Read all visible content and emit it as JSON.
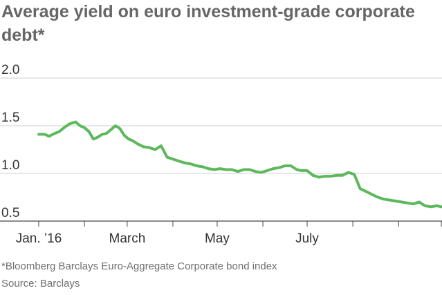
{
  "chart_data": {
    "type": "line",
    "title": "Average yield on euro investment-grade corporate debt*",
    "xlabel": "",
    "ylabel": "",
    "ylim": [
      0.5,
      2.0
    ],
    "yticks": [
      "2.0",
      "1.5",
      "1.0",
      "0.5"
    ],
    "xticks": [
      "Jan. ’16",
      "March",
      "May",
      "July"
    ],
    "xlim": [
      "2016-01-01",
      "2016-09-30"
    ],
    "grid": "horizontal",
    "line_color": "#5cb85c",
    "x": [
      "2016-01-01",
      "2016-01-05",
      "2016-01-08",
      "2016-01-12",
      "2016-01-15",
      "2016-01-19",
      "2016-01-22",
      "2016-01-26",
      "2016-01-29",
      "2016-02-01",
      "2016-02-04",
      "2016-02-07",
      "2016-02-10",
      "2016-02-13",
      "2016-02-16",
      "2016-02-19",
      "2016-02-22",
      "2016-02-25",
      "2016-02-28",
      "2016-03-02",
      "2016-03-05",
      "2016-03-08",
      "2016-03-12",
      "2016-03-16",
      "2016-03-20",
      "2016-03-24",
      "2016-03-28",
      "2016-04-01",
      "2016-04-05",
      "2016-04-09",
      "2016-04-13",
      "2016-04-17",
      "2016-04-21",
      "2016-04-25",
      "2016-04-29",
      "2016-05-03",
      "2016-05-07",
      "2016-05-11",
      "2016-05-15",
      "2016-05-19",
      "2016-05-23",
      "2016-05-27",
      "2016-05-31",
      "2016-06-04",
      "2016-06-08",
      "2016-06-12",
      "2016-06-16",
      "2016-06-20",
      "2016-06-24",
      "2016-06-27",
      "2016-07-01",
      "2016-07-05",
      "2016-07-09",
      "2016-07-13",
      "2016-07-17",
      "2016-07-21",
      "2016-07-25",
      "2016-07-29",
      "2016-08-02",
      "2016-08-06",
      "2016-08-10",
      "2016-08-14",
      "2016-08-18",
      "2016-08-22",
      "2016-08-26",
      "2016-08-30",
      "2016-09-03",
      "2016-09-07",
      "2016-09-11",
      "2016-09-15",
      "2016-09-19",
      "2016-09-23",
      "2016-09-27",
      "2016-09-30"
    ],
    "values": [
      1.41,
      1.41,
      1.39,
      1.42,
      1.44,
      1.49,
      1.52,
      1.54,
      1.5,
      1.48,
      1.44,
      1.36,
      1.38,
      1.41,
      1.42,
      1.46,
      1.5,
      1.47,
      1.4,
      1.36,
      1.34,
      1.31,
      1.28,
      1.27,
      1.25,
      1.29,
      1.17,
      1.15,
      1.13,
      1.11,
      1.1,
      1.08,
      1.07,
      1.05,
      1.04,
      1.05,
      1.04,
      1.04,
      1.02,
      1.04,
      1.04,
      1.02,
      1.01,
      1.03,
      1.05,
      1.06,
      1.08,
      1.08,
      1.04,
      1.03,
      1.03,
      0.98,
      0.96,
      0.97,
      0.97,
      0.98,
      0.98,
      1.01,
      0.99,
      0.84,
      0.81,
      0.78,
      0.75,
      0.73,
      0.72,
      0.71,
      0.7,
      0.69,
      0.68,
      0.7,
      0.66,
      0.65,
      0.66,
      0.65
    ]
  },
  "footnote": "*Bloomberg Barclays Euro-Aggregate Corporate bond index",
  "source": "Source: Barclays"
}
